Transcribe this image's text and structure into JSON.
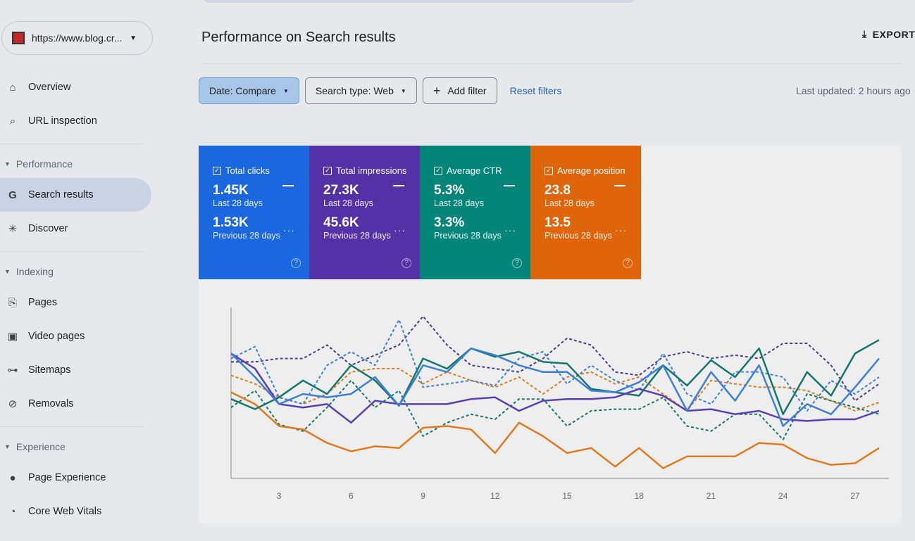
{
  "property": {
    "url": "https://www.blog.cr..."
  },
  "sidebar": {
    "overview": "Overview",
    "url_inspection": "URL inspection",
    "performance": "Performance",
    "search_results": "Search results",
    "discover": "Discover",
    "indexing": "Indexing",
    "pages": "Pages",
    "video_pages": "Video pages",
    "sitemaps": "Sitemaps",
    "removals": "Removals",
    "experience": "Experience",
    "page_experience": "Page Experience",
    "core_web_vitals": "Core Web Vitals"
  },
  "header": {
    "title": "Performance on Search results",
    "export": "EXPORT",
    "last_updated": "Last updated: 2 hours ago"
  },
  "filters": {
    "date": "Date: Compare",
    "search_type": "Search type: Web",
    "add_filter": "Add filter",
    "reset": "Reset filters"
  },
  "cards": [
    {
      "title": "Total clicks",
      "current": "1.45K",
      "current_label": "Last 28 days",
      "previous": "1.53K",
      "previous_label": "Previous 28 days",
      "color": "#1a67e0"
    },
    {
      "title": "Total impressions",
      "current": "27.3K",
      "current_label": "Last 28 days",
      "previous": "45.6K",
      "previous_label": "Previous 28 days",
      "color": "#5531a8"
    },
    {
      "title": "Average CTR",
      "current": "5.3%",
      "current_label": "Last 28 days",
      "previous": "3.3%",
      "previous_label": "Previous 28 days",
      "color": "#04857a"
    },
    {
      "title": "Average position",
      "current": "23.8",
      "current_label": "Last 28 days",
      "previous": "13.5",
      "previous_label": "Previous 28 days",
      "color": "#e0650a"
    }
  ],
  "chart_data": {
    "type": "line",
    "xlabel": "",
    "ylabel": "",
    "ylim": [
      0,
      100
    ],
    "xlim": [
      1,
      28
    ],
    "xticks": [
      "3",
      "6",
      "9",
      "12",
      "15",
      "18",
      "21",
      "24",
      "27"
    ],
    "x": [
      1,
      2,
      3,
      4,
      5,
      6,
      7,
      8,
      9,
      10,
      11,
      12,
      13,
      14,
      15,
      16,
      17,
      18,
      19,
      20,
      21,
      22,
      23,
      24,
      25,
      26,
      27,
      28
    ],
    "series": [
      {
        "name": "Total clicks (Last 28 days)",
        "color": "#3b7fd9",
        "dashed": false,
        "values": [
          74,
          60,
          44,
          50,
          48,
          50,
          60,
          43,
          67,
          63,
          77,
          73,
          67,
          63,
          63,
          52,
          51,
          57,
          67,
          40,
          63,
          46,
          67,
          31,
          44,
          38,
          54,
          71
        ]
      },
      {
        "name": "Total impressions (Last 28 days)",
        "color": "#5a3fb0",
        "dashed": false,
        "values": [
          74,
          65,
          44,
          42,
          44,
          33,
          46,
          44,
          44,
          44,
          47,
          48,
          40,
          46,
          47,
          47,
          48,
          53,
          49,
          40,
          41,
          38,
          40,
          35,
          34,
          35,
          35,
          40
        ]
      },
      {
        "name": "Average CTR (Last 28 days)",
        "color": "#13776c",
        "dashed": false,
        "values": [
          47,
          41,
          48,
          58,
          50,
          67,
          58,
          43,
          71,
          65,
          77,
          72,
          75,
          69,
          68,
          53,
          51,
          49,
          67,
          55,
          70,
          60,
          77,
          38,
          63,
          49,
          74,
          82
        ]
      },
      {
        "name": "Average position (Last 28 days)",
        "color": "#e07a1c",
        "dashed": false,
        "values": [
          51,
          44,
          31,
          29,
          21,
          16,
          19,
          18,
          30,
          31,
          29,
          15,
          33,
          25,
          15,
          18,
          7,
          18,
          6,
          13,
          13,
          13,
          21,
          20,
          12,
          8,
          9,
          18
        ]
      },
      {
        "name": "Total clicks (Previous 28 days)",
        "color": "#3b7fd9",
        "dashed": true,
        "values": [
          71,
          78,
          48,
          44,
          67,
          75,
          67,
          94,
          54,
          56,
          58,
          55,
          71,
          75,
          56,
          67,
          58,
          52,
          74,
          50,
          44,
          63,
          63,
          60,
          40,
          58,
          50,
          60
        ]
      },
      {
        "name": "Total impressions (Previous 28 days)",
        "color": "#4a3a90",
        "dashed": true,
        "values": [
          69,
          69,
          71,
          71,
          79,
          67,
          73,
          79,
          96,
          79,
          67,
          65,
          63,
          71,
          83,
          79,
          63,
          61,
          72,
          75,
          71,
          73,
          71,
          80,
          80,
          67,
          46,
          56
        ]
      },
      {
        "name": "Average CTR (Previous 28 days)",
        "color": "#13776c",
        "dashed": true,
        "values": [
          42,
          52,
          32,
          28,
          42,
          58,
          42,
          52,
          25,
          33,
          38,
          35,
          47,
          47,
          31,
          40,
          41,
          41,
          48,
          31,
          28,
          38,
          38,
          23,
          50,
          46,
          42,
          38
        ]
      },
      {
        "name": "Average position (Previous 28 days)",
        "color": "#e07a1c",
        "dashed": true,
        "values": [
          61,
          56,
          48,
          44,
          50,
          63,
          65,
          65,
          56,
          63,
          58,
          54,
          60,
          50,
          60,
          63,
          56,
          60,
          50,
          40,
          58,
          56,
          54,
          54,
          52,
          46,
          40,
          45
        ]
      }
    ]
  }
}
